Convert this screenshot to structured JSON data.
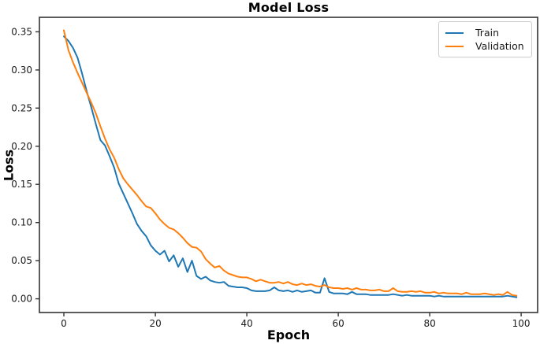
{
  "title": "Model Loss",
  "legend": {
    "items": [
      {
        "label": "Train",
        "color": "#1f77b4"
      },
      {
        "label": "Validation",
        "color": "#ff7f0e"
      }
    ]
  },
  "chart_data": {
    "type": "line",
    "title": "Model Loss",
    "xlabel": "Epoch",
    "ylabel": "Loss",
    "grid": false,
    "legend_position": "upper right",
    "xlim": [
      -5.35,
      103.6
    ],
    "ylim": [
      -0.018,
      0.369
    ],
    "x_ticks": [
      0,
      20,
      40,
      60,
      80,
      100
    ],
    "x_tick_labels": [
      "0",
      "20",
      "40",
      "60",
      "80",
      "100"
    ],
    "y_ticks": [
      0.0,
      0.05,
      0.1,
      0.15,
      0.2,
      0.25,
      0.3,
      0.35
    ],
    "y_tick_labels": [
      "0.00",
      "0.05",
      "0.10",
      "0.15",
      "0.20",
      "0.25",
      "0.30",
      "0.35"
    ],
    "x": [
      0,
      1,
      2,
      3,
      4,
      5,
      6,
      7,
      8,
      9,
      10,
      11,
      12,
      13,
      14,
      15,
      16,
      17,
      18,
      19,
      20,
      21,
      22,
      23,
      24,
      25,
      26,
      27,
      28,
      29,
      30,
      31,
      32,
      33,
      34,
      35,
      36,
      37,
      38,
      39,
      40,
      41,
      42,
      43,
      44,
      45,
      46,
      47,
      48,
      49,
      50,
      51,
      52,
      53,
      54,
      55,
      56,
      57,
      58,
      59,
      60,
      61,
      62,
      63,
      64,
      65,
      66,
      67,
      68,
      69,
      70,
      71,
      72,
      73,
      74,
      75,
      76,
      77,
      78,
      79,
      80,
      81,
      82,
      83,
      84,
      85,
      86,
      87,
      88,
      89,
      90,
      91,
      92,
      93,
      94,
      95,
      96,
      97,
      98,
      99
    ],
    "series": [
      {
        "name": "Train",
        "color": "#1f77b4",
        "values": [
          0.344,
          0.338,
          0.329,
          0.316,
          0.295,
          0.272,
          0.251,
          0.229,
          0.208,
          0.201,
          0.187,
          0.172,
          0.151,
          0.138,
          0.125,
          0.112,
          0.098,
          0.089,
          0.082,
          0.07,
          0.063,
          0.058,
          0.063,
          0.049,
          0.057,
          0.042,
          0.053,
          0.035,
          0.05,
          0.03,
          0.026,
          0.029,
          0.024,
          0.022,
          0.021,
          0.022,
          0.017,
          0.016,
          0.015,
          0.015,
          0.014,
          0.011,
          0.01,
          0.01,
          0.01,
          0.011,
          0.015,
          0.011,
          0.01,
          0.011,
          0.009,
          0.011,
          0.009,
          0.01,
          0.011,
          0.008,
          0.008,
          0.027,
          0.009,
          0.007,
          0.007,
          0.007,
          0.006,
          0.009,
          0.006,
          0.006,
          0.006,
          0.005,
          0.005,
          0.005,
          0.005,
          0.005,
          0.006,
          0.005,
          0.004,
          0.005,
          0.004,
          0.004,
          0.004,
          0.004,
          0.004,
          0.003,
          0.004,
          0.003,
          0.003,
          0.003,
          0.003,
          0.003,
          0.003,
          0.003,
          0.003,
          0.003,
          0.003,
          0.003,
          0.003,
          0.003,
          0.003,
          0.004,
          0.003,
          0.002
        ]
      },
      {
        "name": "Validation",
        "color": "#ff7f0e",
        "values": [
          0.352,
          0.326,
          0.31,
          0.296,
          0.283,
          0.27,
          0.257,
          0.243,
          0.226,
          0.21,
          0.196,
          0.185,
          0.17,
          0.158,
          0.15,
          0.143,
          0.136,
          0.128,
          0.121,
          0.119,
          0.112,
          0.104,
          0.098,
          0.093,
          0.091,
          0.086,
          0.08,
          0.073,
          0.068,
          0.067,
          0.062,
          0.052,
          0.046,
          0.041,
          0.043,
          0.037,
          0.033,
          0.031,
          0.029,
          0.028,
          0.028,
          0.026,
          0.023,
          0.025,
          0.023,
          0.021,
          0.021,
          0.022,
          0.02,
          0.022,
          0.019,
          0.018,
          0.02,
          0.018,
          0.019,
          0.017,
          0.016,
          0.018,
          0.015,
          0.014,
          0.014,
          0.013,
          0.014,
          0.012,
          0.014,
          0.012,
          0.012,
          0.011,
          0.011,
          0.012,
          0.01,
          0.01,
          0.014,
          0.01,
          0.009,
          0.009,
          0.01,
          0.009,
          0.01,
          0.008,
          0.008,
          0.009,
          0.007,
          0.008,
          0.007,
          0.007,
          0.007,
          0.006,
          0.008,
          0.006,
          0.006,
          0.006,
          0.007,
          0.006,
          0.005,
          0.006,
          0.005,
          0.009,
          0.005,
          0.004
        ]
      }
    ]
  }
}
